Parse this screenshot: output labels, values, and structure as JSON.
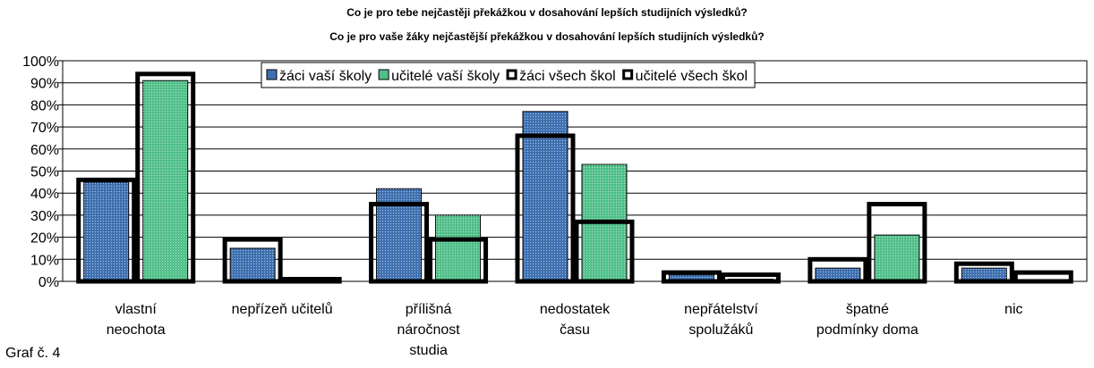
{
  "chart_data": {
    "type": "bar",
    "title": "Co je pro tebe nejčastěji překážkou v dosahování lepších studijních výsledků?",
    "subtitle": "Co je pro vaše žáky nejčastější překážkou v dosahování lepších studijních výsledků?",
    "caption": "Graf č. 4",
    "categories": [
      "vlastní\nneochota",
      "nepřízeň učitelů",
      "přílišná\nnáročnost\nstudia",
      "nedostatek\nčasu",
      "nepřátelství\nspolužáků",
      "špatné\npodmínky doma",
      "nic"
    ],
    "series": [
      {
        "name": "žáci vaší školy",
        "color": "#3d6fb0",
        "values": [
          45,
          15,
          42,
          77,
          3,
          6,
          6
        ]
      },
      {
        "name": "učitelé vaší školy",
        "color": "#4fbf88",
        "values": [
          91,
          0,
          30,
          53,
          1,
          21,
          0
        ]
      },
      {
        "name": "žáci všech škol",
        "color": "#000000",
        "values": [
          46,
          19,
          35,
          66,
          4,
          10,
          8
        ]
      },
      {
        "name": "učitelé všech škol",
        "color": "#000000",
        "values": [
          94,
          1,
          19,
          27,
          3,
          35,
          4
        ]
      }
    ],
    "ylim": [
      0,
      100
    ],
    "yticks": [
      {
        "value": 0,
        "label": "0%"
      },
      {
        "value": 10,
        "label": "10%"
      },
      {
        "value": 20,
        "label": "20%"
      },
      {
        "value": 30,
        "label": "30%"
      },
      {
        "value": 40,
        "label": "40%"
      },
      {
        "value": 50,
        "label": "50%"
      },
      {
        "value": 60,
        "label": "60%"
      },
      {
        "value": 70,
        "label": "70%"
      },
      {
        "value": 80,
        "label": "80%"
      },
      {
        "value": 90,
        "label": "90%"
      },
      {
        "value": 100,
        "label": "100%"
      }
    ],
    "grid": true,
    "legend": "top"
  }
}
